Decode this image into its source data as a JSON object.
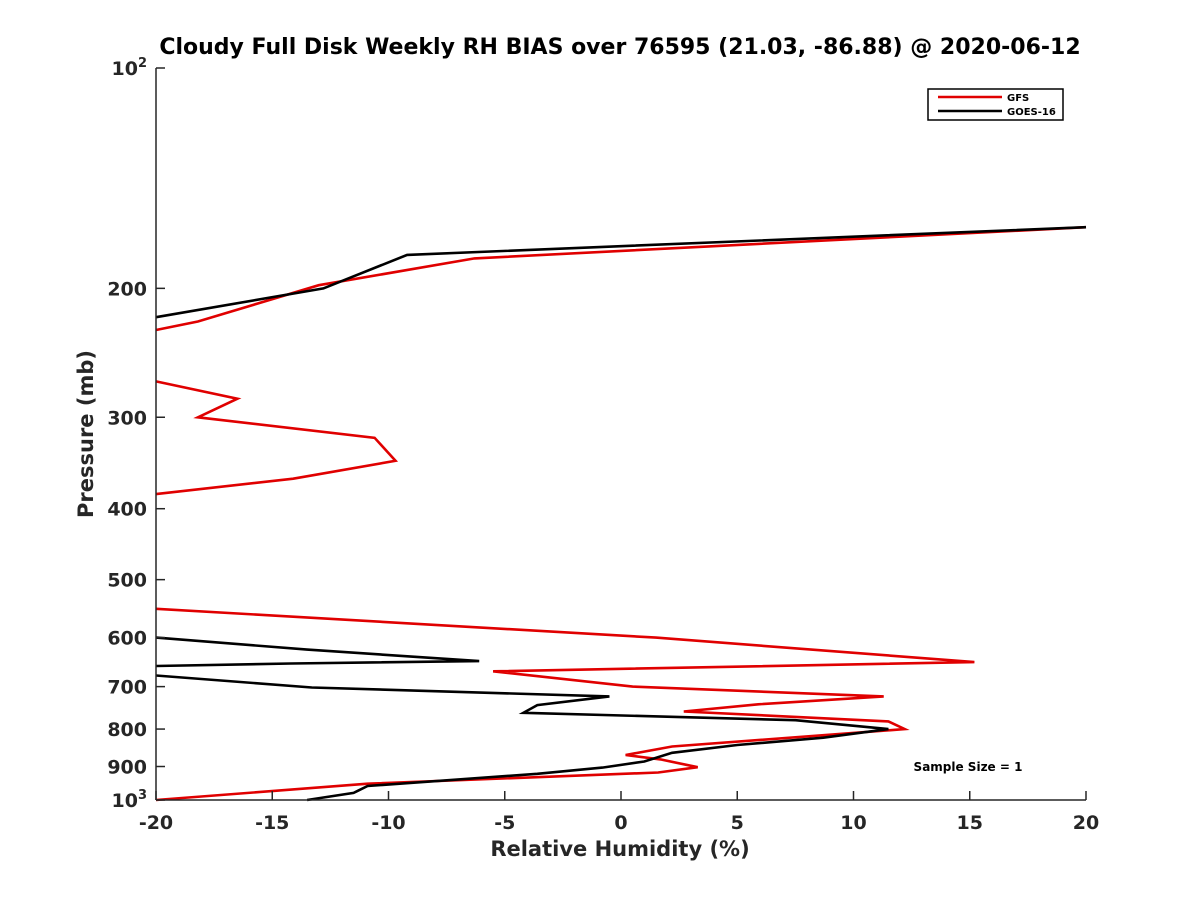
{
  "chart_data": {
    "type": "line",
    "title": "Cloudy Full Disk Weekly RH BIAS over 76595 (21.03, -86.88) @ 2020-06-12",
    "xlabel": "Relative Humidity (%)",
    "ylabel": "Pressure (mb)",
    "xlim": [
      -20,
      20
    ],
    "ylim": [
      100,
      1000
    ],
    "yscale": "log",
    "yreversed": true,
    "x_ticks": [
      "-20",
      "-15",
      "-10",
      "-5",
      "0",
      "5",
      "10",
      "15",
      "20"
    ],
    "y_ticks": [
      {
        "value": 100,
        "base": "10",
        "exp": "2"
      },
      {
        "value": 200,
        "label": "200"
      },
      {
        "value": 300,
        "label": "300"
      },
      {
        "value": 400,
        "label": "400"
      },
      {
        "value": 500,
        "label": "500"
      },
      {
        "value": 600,
        "label": "600"
      },
      {
        "value": 700,
        "label": "700"
      },
      {
        "value": 800,
        "label": "800"
      },
      {
        "value": 900,
        "label": "900"
      },
      {
        "value": 1000,
        "base": "10",
        "exp": "3"
      }
    ],
    "legend_position": "top-right",
    "series": [
      {
        "name": "GFS",
        "color": "#e00000",
        "segments": [
          [
            {
              "x": 20.0,
              "p": 165
            },
            {
              "x": -6.3,
              "p": 182
            },
            {
              "x": -13.0,
              "p": 198
            },
            {
              "x": -18.2,
              "p": 222
            },
            {
              "x": -20.0,
              "p": 228
            }
          ],
          [
            {
              "x": -20.0,
              "p": 268
            },
            {
              "x": -16.5,
              "p": 283
            },
            {
              "x": -18.2,
              "p": 300
            },
            {
              "x": -10.6,
              "p": 320
            },
            {
              "x": -9.7,
              "p": 344
            },
            {
              "x": -14.1,
              "p": 364
            },
            {
              "x": -20.0,
              "p": 382
            }
          ],
          [
            {
              "x": -20.0,
              "p": 548
            },
            {
              "x": 1.5,
              "p": 600
            },
            {
              "x": 15.2,
              "p": 648
            },
            {
              "x": -5.5,
              "p": 667
            },
            {
              "x": 0.5,
              "p": 700
            },
            {
              "x": 11.3,
              "p": 722
            },
            {
              "x": 5.9,
              "p": 740
            },
            {
              "x": 2.7,
              "p": 757
            },
            {
              "x": 11.5,
              "p": 781
            },
            {
              "x": 12.2,
              "p": 800
            },
            {
              "x": 2.2,
              "p": 845
            },
            {
              "x": 0.2,
              "p": 868
            },
            {
              "x": 1.7,
              "p": 880
            },
            {
              "x": 3.3,
              "p": 902
            },
            {
              "x": 1.6,
              "p": 917
            },
            {
              "x": -10.9,
              "p": 950
            },
            {
              "x": -20.0,
              "p": 1000
            }
          ]
        ]
      },
      {
        "name": "GOES-16",
        "color": "#000000",
        "segments": [
          [
            {
              "x": 20.0,
              "p": 165
            },
            {
              "x": -9.2,
              "p": 180
            },
            {
              "x": -12.8,
              "p": 200
            },
            {
              "x": -20.0,
              "p": 219
            }
          ],
          [
            {
              "x": -20.0,
              "p": 600
            },
            {
              "x": -13.5,
              "p": 623
            },
            {
              "x": -6.1,
              "p": 646
            },
            {
              "x": -14.2,
              "p": 651
            },
            {
              "x": -20.0,
              "p": 656
            }
          ],
          [
            {
              "x": -20.0,
              "p": 676
            },
            {
              "x": -13.3,
              "p": 702
            },
            {
              "x": -0.5,
              "p": 722
            },
            {
              "x": -3.6,
              "p": 742
            },
            {
              "x": -4.2,
              "p": 760
            },
            {
              "x": 7.5,
              "p": 778
            },
            {
              "x": 11.5,
              "p": 800
            },
            {
              "x": 8.7,
              "p": 822
            },
            {
              "x": 5.0,
              "p": 841
            },
            {
              "x": 2.2,
              "p": 862
            },
            {
              "x": 1.0,
              "p": 886
            },
            {
              "x": -0.8,
              "p": 903
            },
            {
              "x": -3.6,
              "p": 921
            },
            {
              "x": -10.9,
              "p": 957
            },
            {
              "x": -11.3,
              "p": 971
            },
            {
              "x": -11.5,
              "p": 978
            },
            {
              "x": -13.5,
              "p": 1000
            }
          ]
        ]
      }
    ],
    "annotation": "Sample Size = 1"
  }
}
